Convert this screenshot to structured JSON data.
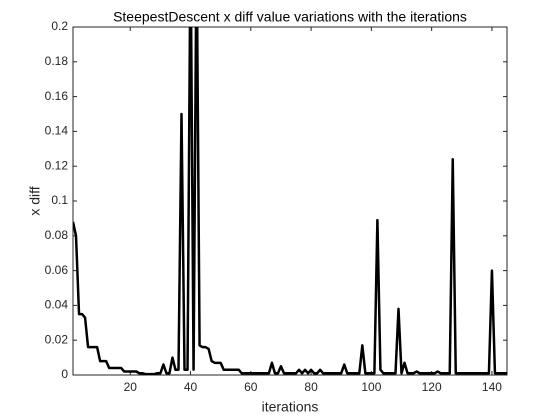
{
  "chart_data": {
    "type": "line",
    "title": "SteepestDescent x diff value variations with the iterations",
    "x_label": "iterations",
    "y_label": "x diff",
    "x": [
      1,
      2,
      3,
      4,
      5,
      6,
      7,
      8,
      9,
      10,
      11,
      12,
      13,
      14,
      15,
      16,
      17,
      18,
      19,
      20,
      21,
      22,
      23,
      24,
      25,
      26,
      27,
      28,
      29,
      30,
      31,
      32,
      33,
      34,
      35,
      36,
      37,
      38,
      39,
      40,
      41,
      42,
      43,
      44,
      45,
      46,
      47,
      48,
      49,
      50,
      51,
      52,
      53,
      54,
      55,
      56,
      57,
      58,
      59,
      60,
      61,
      62,
      63,
      64,
      65,
      66,
      67,
      68,
      69,
      70,
      71,
      72,
      73,
      74,
      75,
      76,
      77,
      78,
      79,
      80,
      81,
      82,
      83,
      84,
      85,
      86,
      87,
      88,
      89,
      90,
      91,
      92,
      93,
      94,
      95,
      96,
      97,
      98,
      99,
      100,
      101,
      102,
      103,
      104,
      105,
      106,
      107,
      108,
      109,
      110,
      111,
      112,
      113,
      114,
      115,
      116,
      117,
      118,
      119,
      120,
      121,
      122,
      123,
      124,
      125,
      126,
      127,
      128,
      129,
      130,
      131,
      132,
      133,
      134,
      135,
      136,
      137,
      138,
      139,
      140,
      141,
      142,
      143,
      144,
      145
    ],
    "values": [
      0.088,
      0.08,
      0.035,
      0.035,
      0.033,
      0.016,
      0.016,
      0.016,
      0.016,
      0.008,
      0.008,
      0.008,
      0.004,
      0.004,
      0.004,
      0.004,
      0.004,
      0.002,
      0.002,
      0.002,
      0.002,
      0.002,
      0.001,
      0.001,
      0.0005,
      0.0005,
      0.0005,
      0.0005,
      0.001,
      0.001,
      0.006,
      0.001,
      0.001,
      0.01,
      0.003,
      0.003,
      0.15,
      0.003,
      0.003,
      0.25,
      0.003,
      0.25,
      0.017,
      0.016,
      0.016,
      0.015,
      0.008,
      0.007,
      0.007,
      0.007,
      0.003,
      0.003,
      0.003,
      0.003,
      0.003,
      0.003,
      0.001,
      0.001,
      0.001,
      0.001,
      0.001,
      0.001,
      0.001,
      0.001,
      0.001,
      0.001,
      0.007,
      0.001,
      0.001,
      0.005,
      0.001,
      0.001,
      0.001,
      0.001,
      0.001,
      0.003,
      0.001,
      0.003,
      0.001,
      0.003,
      0.001,
      0.001,
      0.003,
      0.001,
      0.001,
      0.001,
      0.001,
      0.001,
      0.001,
      0.001,
      0.006,
      0.001,
      0.001,
      0.001,
      0.001,
      0.001,
      0.017,
      0.001,
      0.001,
      0.001,
      0.001,
      0.089,
      0.003,
      0.001,
      0.001,
      0.001,
      0.001,
      0.001,
      0.038,
      0.001,
      0.007,
      0.001,
      0.001,
      0.001,
      0.002,
      0.001,
      0.001,
      0.001,
      0.001,
      0.001,
      0.001,
      0.002,
      0.001,
      0.001,
      0.001,
      0.001,
      0.124,
      0.001,
      0.001,
      0.001,
      0.001,
      0.001,
      0.001,
      0.001,
      0.001,
      0.001,
      0.001,
      0.001,
      0.001,
      0.06,
      0.001,
      0.001,
      0.001,
      0.001,
      0.001
    ],
    "color": "#000000",
    "xlim": [
      1,
      145
    ],
    "ylim": [
      0,
      0.2
    ],
    "xticks": [
      20,
      40,
      60,
      80,
      100,
      120,
      140
    ],
    "yticks": [
      0,
      0.02,
      0.04,
      0.06,
      0.08,
      0.1,
      0.12,
      0.14,
      0.16,
      0.18,
      0.2
    ],
    "grid": false
  }
}
